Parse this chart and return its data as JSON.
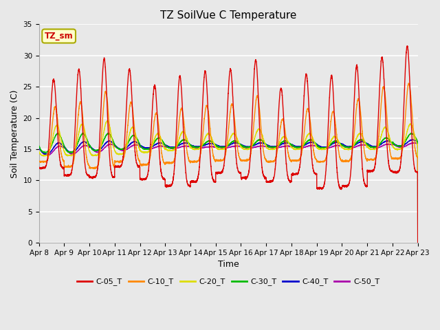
{
  "title": "TZ SoilVue C Temperature",
  "xlabel": "Time",
  "ylabel": "Soil Temperature (C)",
  "ylim": [
    0,
    35
  ],
  "yticks": [
    0,
    5,
    10,
    15,
    20,
    25,
    30,
    35
  ],
  "x_labels": [
    "Apr 8",
    "Apr 9",
    "Apr 10",
    "Apr 11",
    "Apr 12",
    "Apr 13",
    "Apr 14",
    "Apr 15",
    "Apr 16",
    "Apr 17",
    "Apr 18",
    "Apr 19",
    "Apr 20",
    "Apr 21",
    "Apr 22",
    "Apr 23"
  ],
  "series_colors": {
    "C-05_T": "#dd0000",
    "C-10_T": "#ff8800",
    "C-20_T": "#dddd00",
    "C-30_T": "#00bb00",
    "C-40_T": "#0000cc",
    "C-50_T": "#aa00aa"
  },
  "legend_label": "TZ_sm",
  "legend_box_color": "#ffffcc",
  "legend_text_color": "#cc0000",
  "plot_bg_color": "#e8e8e8",
  "grid_color": "#ffffff",
  "n_days": 15,
  "samples_per_day": 288,
  "peak_hour": 14.0,
  "valley_hour": 4.0,
  "daily_peak_05": [
    26.2,
    27.8,
    29.5,
    27.8,
    25.2,
    26.7,
    27.5,
    27.8,
    29.3,
    24.8,
    27.0,
    26.8,
    28.4,
    29.7,
    31.5
  ],
  "daily_min_05": [
    12.0,
    10.8,
    10.5,
    12.2,
    10.2,
    9.1,
    9.8,
    11.2,
    10.4,
    9.8,
    11.0,
    8.7,
    9.1,
    11.5,
    11.3
  ],
  "daily_peak_10": [
    21.8,
    22.5,
    24.2,
    22.5,
    20.8,
    21.5,
    22.0,
    22.2,
    23.5,
    19.8,
    21.5,
    21.0,
    23.0,
    25.0,
    25.5
  ],
  "daily_min_10": [
    13.0,
    12.2,
    12.0,
    13.0,
    12.5,
    12.8,
    13.0,
    13.2,
    13.2,
    13.0,
    13.2,
    13.0,
    13.1,
    13.3,
    13.5
  ],
  "daily_peak_20": [
    18.8,
    19.0,
    19.5,
    18.5,
    17.5,
    17.8,
    17.5,
    17.5,
    18.2,
    17.0,
    17.5,
    17.0,
    17.5,
    18.5,
    19.0
  ],
  "daily_min_20": [
    14.0,
    14.0,
    14.0,
    14.2,
    14.5,
    14.8,
    15.0,
    15.0,
    15.0,
    15.0,
    15.0,
    15.0,
    15.0,
    15.0,
    15.0
  ],
  "daily_peak_30": [
    17.5,
    17.5,
    17.5,
    17.2,
    16.8,
    16.5,
    16.3,
    16.3,
    16.5,
    16.3,
    16.5,
    16.3,
    16.5,
    16.8,
    17.5
  ],
  "daily_min_30": [
    14.5,
    14.5,
    14.8,
    15.0,
    15.0,
    15.2,
    15.3,
    15.3,
    15.3,
    15.3,
    15.3,
    15.2,
    15.3,
    15.3,
    15.5
  ],
  "daily_peak_40": [
    16.0,
    16.2,
    16.3,
    16.2,
    16.0,
    16.0,
    15.9,
    16.0,
    16.0,
    16.0,
    16.1,
    16.1,
    16.2,
    16.3,
    16.5
  ],
  "daily_min_40": [
    14.2,
    14.5,
    14.8,
    15.0,
    15.2,
    15.3,
    15.4,
    15.4,
    15.4,
    15.4,
    15.4,
    15.3,
    15.4,
    15.4,
    15.5
  ],
  "daily_peak_50": [
    15.5,
    15.6,
    15.8,
    15.7,
    15.5,
    15.5,
    15.4,
    15.5,
    15.5,
    15.5,
    15.6,
    15.6,
    15.7,
    15.8,
    16.0
  ],
  "daily_min_50": [
    14.0,
    14.2,
    14.5,
    14.8,
    15.0,
    15.1,
    15.2,
    15.2,
    15.2,
    15.2,
    15.2,
    15.1,
    15.2,
    15.2,
    15.3
  ]
}
